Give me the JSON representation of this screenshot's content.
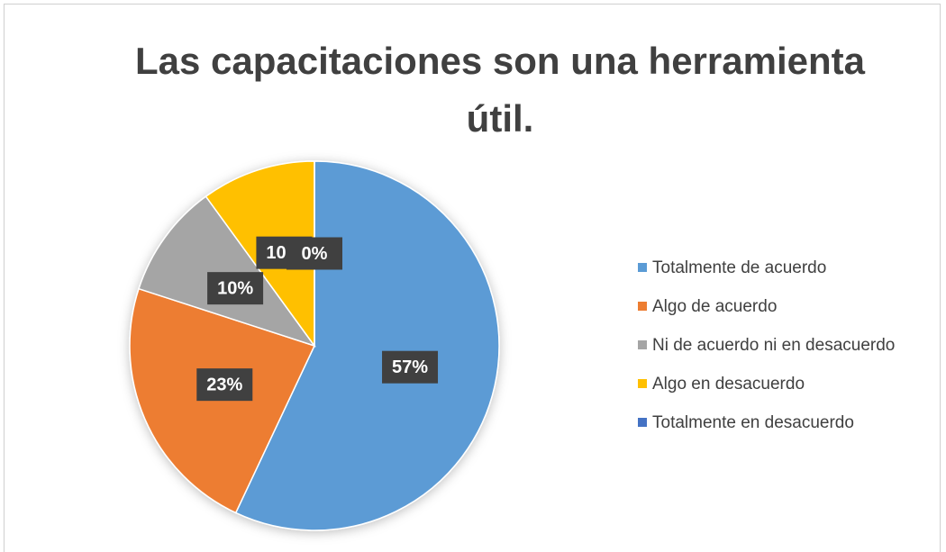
{
  "chart_data": {
    "type": "pie",
    "title": "Las capacitaciones son una herramienta útil.",
    "categories": [
      "Totalmente de acuerdo",
      "Algo de acuerdo",
      "Ni de acuerdo ni en desacuerdo",
      "Algo en desacuerdo",
      "Totalmente en desacuerdo"
    ],
    "values": [
      57,
      23,
      10,
      10,
      0
    ],
    "value_labels": [
      "57%",
      "23%",
      "10%",
      "10%",
      "0%"
    ],
    "colors": [
      "#5b9bd5",
      "#ed7d31",
      "#a5a5a5",
      "#ffc000",
      "#4472c4"
    ],
    "legend": "right"
  }
}
